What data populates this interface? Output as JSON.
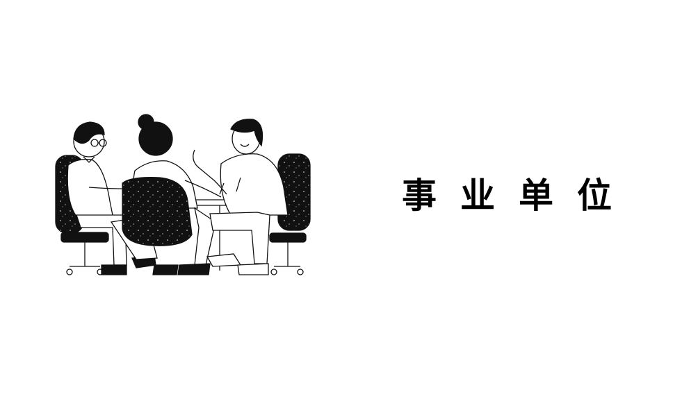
{
  "title": "事业单位",
  "colors": {
    "background": "#ffffff",
    "ink": "#111111",
    "text": "#000000"
  },
  "illustration": {
    "subject": "meeting-illustration"
  }
}
